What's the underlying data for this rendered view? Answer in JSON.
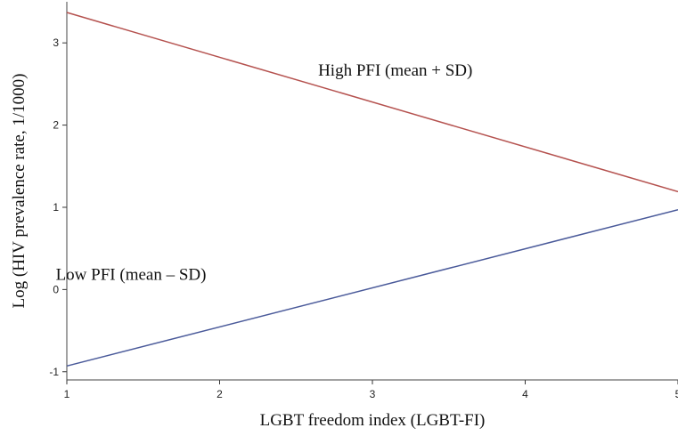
{
  "chart_data": {
    "type": "line",
    "title": "",
    "xlabel": "LGBT freedom index (LGBT-FI)",
    "ylabel": "Log (HIV prevalence rate, 1/1000)",
    "xlim": [
      1,
      5
    ],
    "ylim": [
      -1.1,
      3.5
    ],
    "xticks": [
      "1",
      "2",
      "3",
      "4",
      "5"
    ],
    "yticks": [
      "-1",
      "0",
      "1",
      "2",
      "3"
    ],
    "grid": true,
    "series": [
      {
        "label": "High PFI (mean + SD)",
        "color": "#b5524f",
        "x": [
          1,
          5
        ],
        "y": [
          3.37,
          1.19
        ]
      },
      {
        "label": "Low PFI (mean – SD)",
        "color": "#4a5a9a",
        "x": [
          1,
          5
        ],
        "y": [
          -0.93,
          0.97
        ]
      }
    ],
    "annotations": [
      {
        "text": "High PFI (mean + SD)",
        "x": 3.15,
        "y": 2.6
      },
      {
        "text": "Low PFI (mean – SD)",
        "x": 1.42,
        "y": 0.12
      }
    ]
  }
}
